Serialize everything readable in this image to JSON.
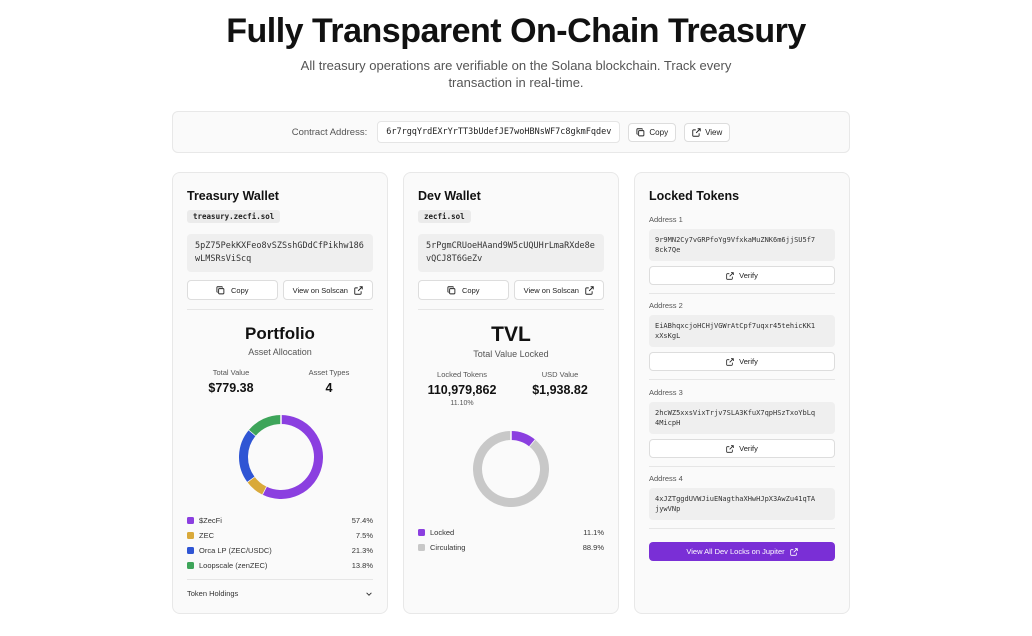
{
  "hero": {
    "title": "Fully Transparent On-Chain Treasury",
    "subtitle_line1": "All treasury operations are verifiable on the Solana blockchain. Track every",
    "subtitle_line2": "transaction in real-time."
  },
  "contract": {
    "label": "Contract Address:",
    "address": "6r7rgqYrdEXrYrTT3bUdefJE7woHBNsWF7c8gkmFqdev",
    "copy_label": "Copy",
    "view_label": "View"
  },
  "treasury": {
    "title": "Treasury Wallet",
    "domain": "treasury.zecfi.sol",
    "address_line1": "5pZ75PekKXFeo8vSZSshGDdCfPikhw186",
    "address_line2": "wLMSRsViScq",
    "copy_label": "Copy",
    "solscan_label": "View on Solscan",
    "portfolio_title": "Portfolio",
    "portfolio_sub": "Asset Allocation",
    "total_value_label": "Total Value",
    "total_value": "$779.38",
    "asset_types_label": "Asset Types",
    "asset_types": "4",
    "holdings_label": "Token Holdings",
    "legend": [
      {
        "name": "$ZecFi",
        "value": "57.4%",
        "color": "#8b3fe0"
      },
      {
        "name": "ZEC",
        "value": "7.5%",
        "color": "#d9a93a"
      },
      {
        "name": "Orca LP (ZEC/USDC)",
        "value": "21.3%",
        "color": "#2f55d4"
      },
      {
        "name": "Loopscale (zenZEC)",
        "value": "13.8%",
        "color": "#3ea55a"
      }
    ]
  },
  "dev": {
    "title": "Dev Wallet",
    "domain": "zecfi.sol",
    "address_line1": "5rPgmCRUoeHAand9W5cUQUHrLmaRXde8e",
    "address_line2": "vQCJ8T6GeZv",
    "copy_label": "Copy",
    "solscan_label": "View on Solscan",
    "tvl_title": "TVL",
    "tvl_sub": "Total Value Locked",
    "locked_tokens_label": "Locked Tokens",
    "locked_tokens": "110,979,862",
    "locked_pct": "11.10%",
    "usd_value_label": "USD Value",
    "usd_value": "$1,938.82",
    "legend": [
      {
        "name": "Locked",
        "value": "11.1%",
        "color": "#8b3fe0"
      },
      {
        "name": "Circulating",
        "value": "88.9%",
        "color": "#c8c8c8"
      }
    ]
  },
  "locked": {
    "title": "Locked Tokens",
    "verify_label": "Verify",
    "items": [
      {
        "label": "Address 1",
        "address_line1": "9r9MN2Cy7vGRPfoYg9VfxkaMuZNK6m6jjSU5f7",
        "address_line2": "8ck7Qe"
      },
      {
        "label": "Address 2",
        "address_line1": "EiABhqxcjoHCHjVGWrAtCpf7uqxr45tehicKK1",
        "address_line2": "xXsKgL"
      },
      {
        "label": "Address 3",
        "address_line1": "2hcWZ5xxsVixTrjv7SLA3KfuX7qpHSzTxoYbLq",
        "address_line2": "4MicpH"
      },
      {
        "label": "Address 4",
        "address_line1": "4xJZTggdUVWJiuENagthaXHwHJpX3AwZu41qTA",
        "address_line2": "jywVNp"
      }
    ],
    "jupiter_label": "View All Dev Locks on Jupiter"
  },
  "chart_data": [
    {
      "type": "pie",
      "title": "Portfolio",
      "categories": [
        "$ZecFi",
        "ZEC",
        "Orca LP (ZEC/USDC)",
        "Loopscale (zenZEC)"
      ],
      "values": [
        57.4,
        7.5,
        21.3,
        13.8
      ],
      "colors": [
        "#8b3fe0",
        "#d9a93a",
        "#2f55d4",
        "#3ea55a"
      ]
    },
    {
      "type": "pie",
      "title": "TVL",
      "categories": [
        "Locked",
        "Circulating"
      ],
      "values": [
        11.1,
        88.9
      ],
      "colors": [
        "#8b3fe0",
        "#c8c8c8"
      ]
    }
  ]
}
